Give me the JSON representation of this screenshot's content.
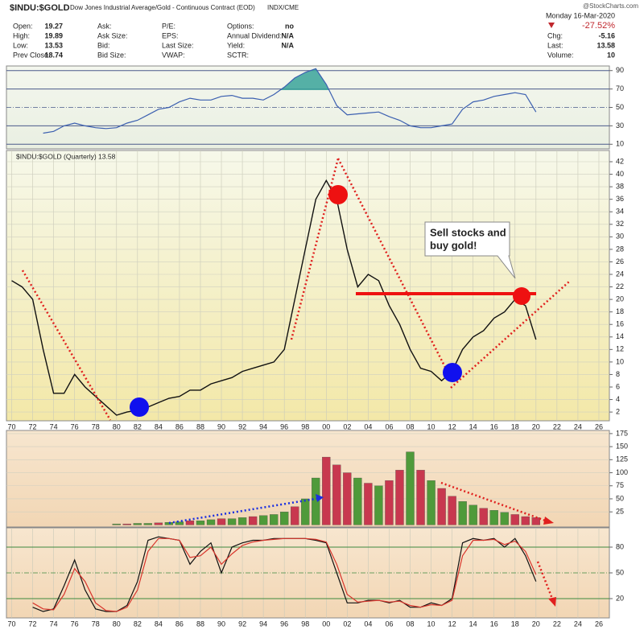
{
  "header": {
    "symbol": "$INDU:$GOLD",
    "description": "Dow Jones Industrial Average/Gold - Continuous Contract (EOD)",
    "exchange": "INDX/CME",
    "brand": "@StockCharts.com",
    "date": "Monday  16-Mar-2020",
    "change_pct": "-27.52%",
    "columns": [
      [
        {
          "label": "Open:",
          "value": 19.27
        },
        {
          "label": "High:",
          "value": 19.89
        },
        {
          "label": "Low:",
          "value": 13.53
        },
        {
          "label": "Prev Close:",
          "value": 18.74
        }
      ],
      [
        {
          "label": "Ask:"
        },
        {
          "label": "Ask Size:"
        },
        {
          "label": "Bid:"
        },
        {
          "label": "Bid Size:"
        }
      ],
      [
        {
          "label": "P/E:"
        },
        {
          "label": "EPS:"
        },
        {
          "label": "Last Size:"
        },
        {
          "label": "VWAP:"
        }
      ],
      [
        {
          "label": "Options:",
          "value": "no"
        },
        {
          "label": "Annual Dividend:",
          "value": "N/A"
        },
        {
          "label": "Yield:",
          "value": "N/A"
        },
        {
          "label": "SCTR:"
        }
      ],
      [
        {
          "label": "Chg:",
          "value": -5.16
        },
        {
          "label": "Last:",
          "value": 13.58
        },
        {
          "label": "Volume:",
          "value": 10
        }
      ]
    ]
  },
  "chart_data": [
    {
      "type": "line",
      "color": "#3b5fb0",
      "x": [
        1973,
        1974,
        1975,
        1976,
        1977,
        1978,
        1979,
        1980,
        1981,
        1982,
        1983,
        1984,
        1985,
        1986,
        1987,
        1988,
        1989,
        1990,
        1991,
        1992,
        1993,
        1994,
        1995,
        1996,
        1997,
        1998,
        1999,
        2000,
        2001,
        2002,
        2003,
        2004,
        2005,
        2006,
        2007,
        2008,
        2009,
        2010,
        2011,
        2012,
        2013,
        2014,
        2015,
        2016,
        2017,
        2018,
        2019,
        2020
      ],
      "values": [
        22,
        24,
        30,
        33,
        30,
        28,
        27,
        28,
        33,
        36,
        42,
        48,
        50,
        56,
        60,
        58,
        58,
        62,
        63,
        60,
        60,
        58,
        64,
        72,
        82,
        88,
        92,
        75,
        52,
        42,
        43,
        44,
        45,
        40,
        36,
        30,
        28,
        28,
        30,
        32,
        48,
        56,
        58,
        62,
        64,
        66,
        64,
        45
      ],
      "xlim": [
        1969.5,
        2027
      ],
      "ylim": [
        5,
        95
      ],
      "yticks": [
        10,
        30,
        50,
        70,
        90
      ],
      "grid": false
    },
    {
      "type": "line",
      "title": "$INDU:$GOLD (Quarterly) 13.58",
      "color": "#111111",
      "x": [
        1970,
        1971,
        1972,
        1973,
        1974,
        1975,
        1976,
        1977,
        1978,
        1979,
        1980,
        1981,
        1982,
        1983,
        1984,
        1985,
        1986,
        1987,
        1988,
        1989,
        1990,
        1991,
        1992,
        1993,
        1994,
        1995,
        1996,
        1997,
        1998,
        1999,
        2000,
        2001,
        2002,
        2003,
        2004,
        2005,
        2006,
        2007,
        2008,
        2009,
        2010,
        2011,
        2012,
        2013,
        2014,
        2015,
        2016,
        2017,
        2018,
        2019,
        2020
      ],
      "values": [
        23,
        22,
        20,
        12,
        5,
        5,
        8,
        6,
        4.5,
        3,
        1.5,
        2,
        2.3,
        2.8,
        3.5,
        4.2,
        4.5,
        5.5,
        5.5,
        6.5,
        7,
        7.5,
        8.5,
        9,
        9.5,
        10,
        12,
        20,
        28,
        36,
        39,
        36,
        28,
        22,
        24,
        23,
        19,
        16,
        12,
        9,
        8.5,
        7,
        8.5,
        12,
        14,
        15,
        17,
        18,
        20,
        19,
        13.58
      ],
      "annotation": [
        "Sell stocks and",
        "buy gold!"
      ],
      "xlim": [
        1969.5,
        2027
      ],
      "ylim": [
        0.6,
        43.8
      ],
      "yticks": [
        2,
        4,
        6,
        8,
        10,
        12,
        14,
        16,
        18,
        20,
        22,
        24,
        26,
        28,
        30,
        32,
        34,
        36,
        38,
        40,
        42
      ],
      "xticks": [
        {
          "value": 1970,
          "label": "70"
        },
        {
          "value": 1972,
          "label": "72"
        },
        {
          "value": 1974,
          "label": "74"
        },
        {
          "value": 1976,
          "label": "76"
        },
        {
          "value": 1978,
          "label": "78"
        },
        {
          "value": 1980,
          "label": "80"
        },
        {
          "value": 1982,
          "label": "82"
        },
        {
          "value": 1984,
          "label": "84"
        },
        {
          "value": 1986,
          "label": "86"
        },
        {
          "value": 1988,
          "label": "88"
        },
        {
          "value": 1990,
          "label": "90"
        },
        {
          "value": 1992,
          "label": "92"
        },
        {
          "value": 1994,
          "label": "94"
        },
        {
          "value": 1996,
          "label": "96"
        },
        {
          "value": 1998,
          "label": "98"
        },
        {
          "value": 2000,
          "label": "00"
        },
        {
          "value": 2002,
          "label": "02"
        },
        {
          "value": 2004,
          "label": "04"
        },
        {
          "value": 2006,
          "label": "06"
        },
        {
          "value": 2008,
          "label": "08"
        },
        {
          "value": 2010,
          "label": "10"
        },
        {
          "value": 2012,
          "label": "12"
        },
        {
          "value": 2014,
          "label": "14"
        },
        {
          "value": 2016,
          "label": "16"
        },
        {
          "value": 2018,
          "label": "18"
        },
        {
          "value": 2020,
          "label": "20"
        },
        {
          "value": 2022,
          "label": "22"
        },
        {
          "value": 2024,
          "label": "24"
        },
        {
          "value": 2026,
          "label": "26"
        }
      ],
      "grid": true
    },
    {
      "type": "bar",
      "x": [
        1980,
        1981,
        1982,
        1983,
        1984,
        1985,
        1986,
        1987,
        1988,
        1989,
        1990,
        1991,
        1992,
        1993,
        1994,
        1995,
        1996,
        1997,
        1998,
        1999,
        2000,
        2001,
        2002,
        2003,
        2004,
        2005,
        2006,
        2007,
        2008,
        2009,
        2010,
        2011,
        2012,
        2013,
        2014,
        2015,
        2016,
        2017,
        2018,
        2019,
        2020
      ],
      "values": [
        2,
        2,
        3,
        3,
        4,
        5,
        6,
        8,
        8,
        10,
        12,
        12,
        14,
        16,
        18,
        20,
        25,
        35,
        50,
        90,
        130,
        115,
        100,
        90,
        80,
        75,
        85,
        105,
        140,
        105,
        85,
        70,
        55,
        45,
        38,
        32,
        28,
        24,
        20,
        16,
        14
      ],
      "colors": [
        "#4f9a3a",
        "#c8384f",
        "#4f9a3a",
        "#4f9a3a",
        "#c8384f",
        "#4f9a3a",
        "#4f9a3a",
        "#c8384f",
        "#4f9a3a",
        "#4f9a3a",
        "#c8384f",
        "#4f9a3a",
        "#4f9a3a",
        "#c8384f",
        "#4f9a3a",
        "#4f9a3a",
        "#4f9a3a",
        "#c8384f",
        "#4f9a3a",
        "#4f9a3a",
        "#c8384f",
        "#c8384f",
        "#c8384f",
        "#4f9a3a",
        "#c8384f",
        "#4f9a3a",
        "#c8384f",
        "#c8384f",
        "#4f9a3a",
        "#c8384f",
        "#4f9a3a",
        "#c8384f",
        "#c8384f",
        "#4f9a3a",
        "#4f9a3a",
        "#c8384f",
        "#4f9a3a",
        "#4f9a3a",
        "#c8384f",
        "#c8384f",
        "#c8384f"
      ],
      "xlim": [
        1969.5,
        2027
      ],
      "ylim": [
        -4,
        181
      ],
      "yticks": [
        25,
        50,
        75,
        100,
        125,
        150,
        175
      ],
      "grid": true
    },
    {
      "type": "line",
      "x": [
        1972,
        1973,
        1974,
        1975,
        1976,
        1977,
        1978,
        1979,
        1980,
        1981,
        1982,
        1983,
        1984,
        1985,
        1986,
        1987,
        1988,
        1989,
        1990,
        1991,
        1992,
        1993,
        1994,
        1995,
        1996,
        1997,
        1998,
        1999,
        2000,
        2001,
        2002,
        2003,
        2004,
        2005,
        2006,
        2007,
        2008,
        2009,
        2010,
        2011,
        2012,
        2013,
        2014,
        2015,
        2016,
        2017,
        2018,
        2019,
        2020
      ],
      "series": [
        {
          "color": "#111111",
          "values": [
            10,
            5,
            8,
            35,
            65,
            30,
            8,
            5,
            5,
            12,
            40,
            88,
            92,
            90,
            88,
            60,
            75,
            85,
            50,
            80,
            85,
            88,
            88,
            90,
            90,
            90,
            90,
            88,
            85,
            50,
            15,
            15,
            18,
            18,
            15,
            18,
            10,
            10,
            15,
            12,
            20,
            85,
            90,
            88,
            90,
            80,
            90,
            70,
            40
          ]
        },
        {
          "color": "#d8342b",
          "values": [
            15,
            8,
            7,
            25,
            55,
            40,
            15,
            6,
            5,
            10,
            30,
            75,
            90,
            90,
            88,
            68,
            70,
            80,
            60,
            72,
            82,
            86,
            88,
            89,
            90,
            90,
            90,
            89,
            86,
            60,
            25,
            16,
            17,
            18,
            16,
            17,
            12,
            10,
            13,
            12,
            18,
            70,
            88,
            88,
            89,
            83,
            87,
            75,
            48
          ]
        }
      ],
      "xlim": [
        1969.5,
        2027
      ],
      "ylim": [
        -2.5,
        102.5
      ],
      "yticks": [
        20,
        50,
        80
      ],
      "xticks": [
        {
          "value": 1970,
          "label": "70"
        },
        {
          "value": 1972,
          "label": "72"
        },
        {
          "value": 1974,
          "label": "74"
        },
        {
          "value": 1976,
          "label": "76"
        },
        {
          "value": 1978,
          "label": "78"
        },
        {
          "value": 1980,
          "label": "80"
        },
        {
          "value": 1982,
          "label": "82"
        },
        {
          "value": 1984,
          "label": "84"
        },
        {
          "value": 1986,
          "label": "86"
        },
        {
          "value": 1988,
          "label": "88"
        },
        {
          "value": 1990,
          "label": "90"
        },
        {
          "value": 1992,
          "label": "92"
        },
        {
          "value": 1994,
          "label": "94"
        },
        {
          "value": 1996,
          "label": "96"
        },
        {
          "value": 1998,
          "label": "98"
        },
        {
          "value": 2000,
          "label": "00"
        },
        {
          "value": 2002,
          "label": "02"
        },
        {
          "value": 2004,
          "label": "04"
        },
        {
          "value": 2006,
          "label": "06"
        },
        {
          "value": 2008,
          "label": "08"
        },
        {
          "value": 2010,
          "label": "10"
        },
        {
          "value": 2012,
          "label": "12"
        },
        {
          "value": 2014,
          "label": "14"
        },
        {
          "value": 2016,
          "label": "16"
        },
        {
          "value": 2018,
          "label": "18"
        },
        {
          "value": 2020,
          "label": "20"
        },
        {
          "value": 2022,
          "label": "22"
        },
        {
          "value": 2024,
          "label": "24"
        },
        {
          "value": 2026,
          "label": "26"
        }
      ],
      "grid": true
    }
  ]
}
